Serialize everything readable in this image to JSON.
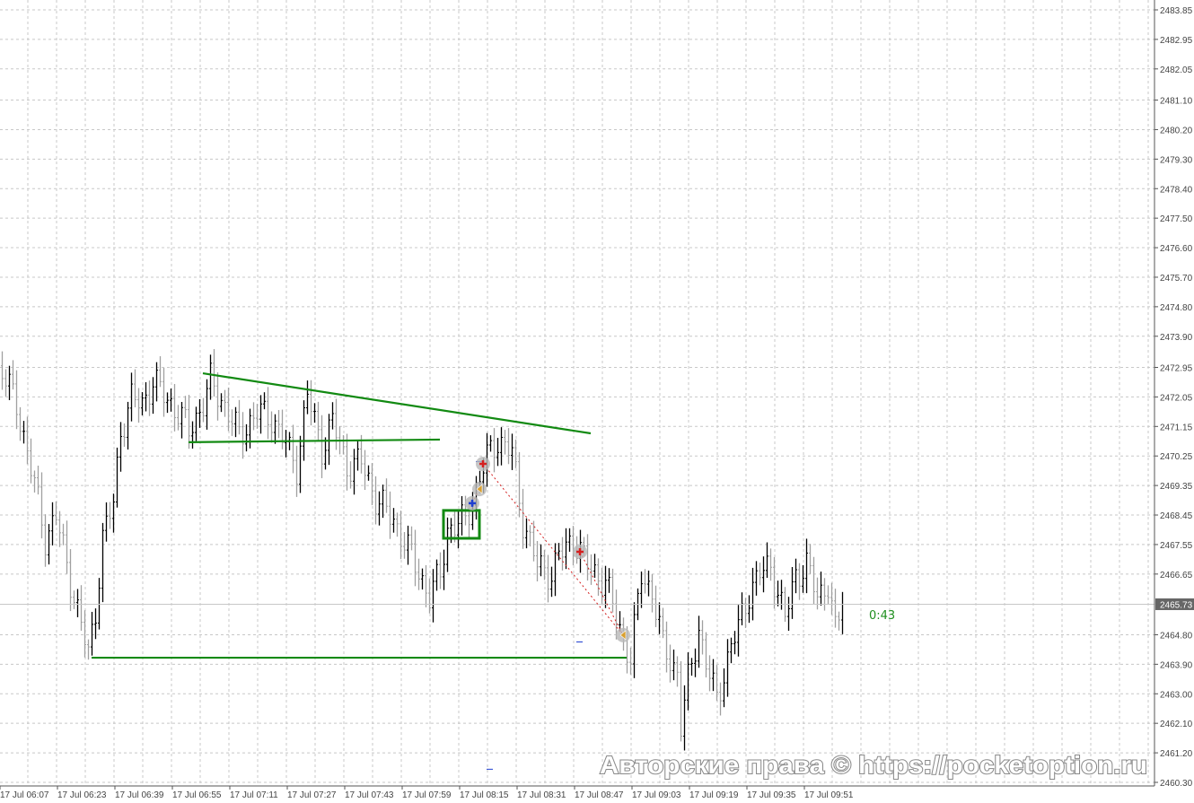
{
  "chart_data": {
    "type": "ohlc",
    "timeframe_minutes": 1,
    "grid": true,
    "colors": {
      "bull": "#000000",
      "bear": "#a0a0a0",
      "trendline": "#128a12",
      "grid": "#c8c8c8",
      "trade_path": "#d42020",
      "timer": "#1f8f1f"
    },
    "y_axis": {
      "range": [
        2460.3,
        2483.85
      ],
      "ticks": [
        "2483.85",
        "2482.95",
        "2482.05",
        "2481.10",
        "2480.20",
        "2479.30",
        "2478.40",
        "2477.50",
        "2476.60",
        "2475.70",
        "2474.80",
        "2473.90",
        "2472.95",
        "2472.05",
        "2471.15",
        "2470.25",
        "2469.35",
        "2468.45",
        "2467.55",
        "2466.65",
        "2464.80",
        "2463.90",
        "2463.00",
        "2462.10",
        "2461.20",
        "2460.30"
      ]
    },
    "x_axis": {
      "ticks": [
        "17 Jul 06:07",
        "17 Jul 06:23",
        "17 Jul 06:39",
        "17 Jul 06:55",
        "17 Jul 07:11",
        "17 Jul 07:27",
        "17 Jul 07:43",
        "17 Jul 07:59",
        "17 Jul 08:15",
        "17 Jul 08:31",
        "17 Jul 08:47",
        "17 Jul 09:03",
        "17 Jul 09:19",
        "17 Jul 09:35",
        "17 Jul 09:51"
      ]
    },
    "price_path": [
      [
        "06:08",
        2472.8
      ],
      [
        "06:12",
        2471.84
      ],
      [
        "06:17",
        2469.38
      ],
      [
        "06:20",
        2467.74
      ],
      [
        "06:23",
        2468.42
      ],
      [
        "06:26",
        2466.92
      ],
      [
        "06:29",
        2465.55
      ],
      [
        "06:32",
        2464.18
      ],
      [
        "06:34",
        2465.55
      ],
      [
        "06:36",
        2467.74
      ],
      [
        "06:39",
        2468.83
      ],
      [
        "06:41",
        2471.02
      ],
      [
        "06:44",
        2471.98
      ],
      [
        "06:47",
        2471.84
      ],
      [
        "06:50",
        2472.53
      ],
      [
        "06:53",
        2472.12
      ],
      [
        "06:57",
        2471.57
      ],
      [
        "07:00",
        2471.02
      ],
      [
        "07:04",
        2471.84
      ],
      [
        "07:06",
        2472.53
      ],
      [
        "07:09",
        2471.98
      ],
      [
        "07:14",
        2470.88
      ],
      [
        "07:19",
        2471.57
      ],
      [
        "07:23",
        2471.43
      ],
      [
        "07:27",
        2470.61
      ],
      [
        "07:30",
        2469.93
      ],
      [
        "07:33",
        2472.12
      ],
      [
        "07:37",
        2470.48
      ],
      [
        "07:40",
        2471.3
      ],
      [
        "07:44",
        2469.93
      ],
      [
        "07:48",
        2470.06
      ],
      [
        "07:52",
        2468.97
      ],
      [
        "07:57",
        2468.29
      ],
      [
        "08:02",
        2467.19
      ],
      [
        "08:07",
        2465.96
      ],
      [
        "08:10",
        2466.65
      ],
      [
        "08:12",
        2468.01
      ],
      [
        "08:17",
        2468.29
      ],
      [
        "08:20",
        2469.24
      ],
      [
        "08:23",
        2470.2
      ],
      [
        "08:26",
        2470.75
      ],
      [
        "08:30",
        2470.34
      ],
      [
        "08:33",
        2468.29
      ],
      [
        "08:37",
        2466.92
      ],
      [
        "08:41",
        2466.65
      ],
      [
        "08:43",
        2467.19
      ],
      [
        "08:47",
        2467.74
      ],
      [
        "08:51",
        2466.92
      ],
      [
        "08:56",
        2466.38
      ],
      [
        "09:00",
        2465.01
      ],
      [
        "09:03",
        2464.05
      ],
      [
        "09:06",
        2466.65
      ],
      [
        "09:09",
        2466.1
      ],
      [
        "09:12",
        2464.46
      ],
      [
        "09:16",
        2463.64
      ],
      [
        "09:17",
        2462.0
      ],
      [
        "09:19",
        2463.37
      ],
      [
        "09:22",
        2465.01
      ],
      [
        "09:24",
        2463.91
      ],
      [
        "09:27",
        2462.82
      ],
      [
        "09:31",
        2464.46
      ],
      [
        "09:33",
        2465.01
      ],
      [
        "09:36",
        2466.1
      ],
      [
        "09:39",
        2466.65
      ],
      [
        "09:42",
        2466.92
      ],
      [
        "09:46",
        2465.28
      ],
      [
        "09:49",
        2466.65
      ],
      [
        "09:52",
        2466.92
      ],
      [
        "09:55",
        2465.96
      ],
      [
        "09:58",
        2466.38
      ],
      [
        "10:00",
        2464.87
      ],
      [
        "10:02",
        2465.73
      ]
    ],
    "current_price": "2465.73",
    "candle_timer": "0:43",
    "trendlines": [
      {
        "from": [
          "07:04",
          2472.77
        ],
        "to": [
          "08:52",
          2470.94
        ]
      },
      {
        "from": [
          "07:00",
          2470.67
        ],
        "to": [
          "08:10",
          2470.75
        ]
      },
      {
        "from": [
          "06:33",
          2464.1
        ],
        "to": [
          "09:02",
          2464.1
        ]
      }
    ],
    "rectangle": {
      "from": [
        "08:11",
        2468.59
      ],
      "to": [
        "08:21",
        2467.74
      ]
    },
    "trade_markers": [
      {
        "time": "08:19",
        "price": 2468.81,
        "kind": "buy",
        "icon": "plus-icon",
        "color": "#1f3fd0"
      },
      {
        "time": "08:21",
        "price": 2469.24,
        "kind": "close",
        "icon": "left-triangle-icon",
        "color": "#d9a030"
      },
      {
        "time": "08:22",
        "price": 2470.01,
        "kind": "sell",
        "icon": "plus-icon",
        "color": "#d42020"
      },
      {
        "time": "08:49",
        "price": 2467.33,
        "kind": "sell",
        "icon": "plus-icon",
        "color": "#d42020"
      },
      {
        "time": "09:01",
        "price": 2464.79,
        "kind": "close",
        "icon": "left-triangle-icon",
        "color": "#d9a030"
      }
    ]
  },
  "watermark": "Авторские права © https://pocketoption.ru"
}
